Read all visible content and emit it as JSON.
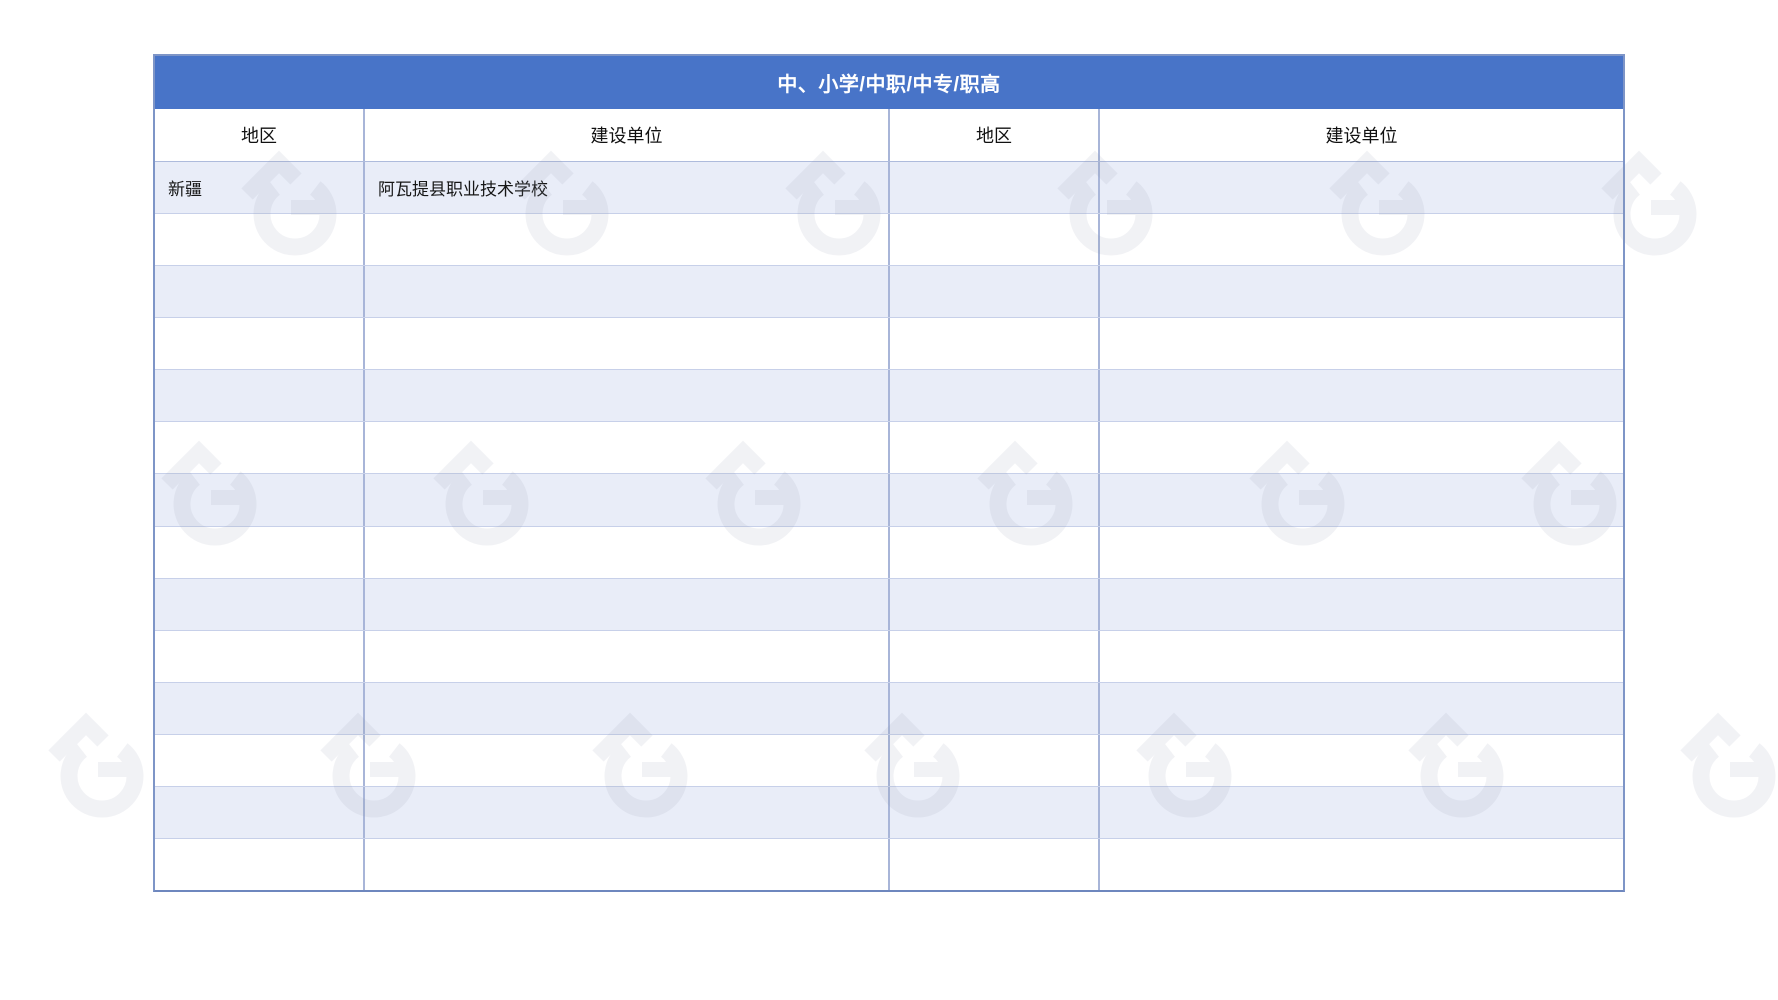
{
  "table": {
    "title": "中、小学/中职/中专/职高",
    "columns": [
      "地区",
      "建设单位",
      "地区",
      "建设单位"
    ],
    "rows": [
      [
        "新疆",
        "阿瓦提县职业技术学校",
        "",
        ""
      ],
      [
        "",
        "",
        "",
        ""
      ],
      [
        "",
        "",
        "",
        ""
      ],
      [
        "",
        "",
        "",
        ""
      ],
      [
        "",
        "",
        "",
        ""
      ],
      [
        "",
        "",
        "",
        ""
      ],
      [
        "",
        "",
        "",
        ""
      ],
      [
        "",
        "",
        "",
        ""
      ],
      [
        "",
        "",
        "",
        ""
      ],
      [
        "",
        "",
        "",
        ""
      ],
      [
        "",
        "",
        "",
        ""
      ],
      [
        "",
        "",
        "",
        ""
      ],
      [
        "",
        "",
        "",
        ""
      ],
      [
        "",
        "",
        "",
        ""
      ]
    ]
  },
  "watermark": {
    "icon": "g-logo-watermark-icon",
    "color": "#8E96AB"
  },
  "colors": {
    "header_blue": "#4874C8",
    "alt_row": "#E9EDF8",
    "outer_border": "#7E95C7",
    "outer_border_bottom": "#6E87BE",
    "col_line": "#A8B5D8",
    "row_line": "#C7D0E9",
    "strong_line": "#AEBBDC"
  }
}
